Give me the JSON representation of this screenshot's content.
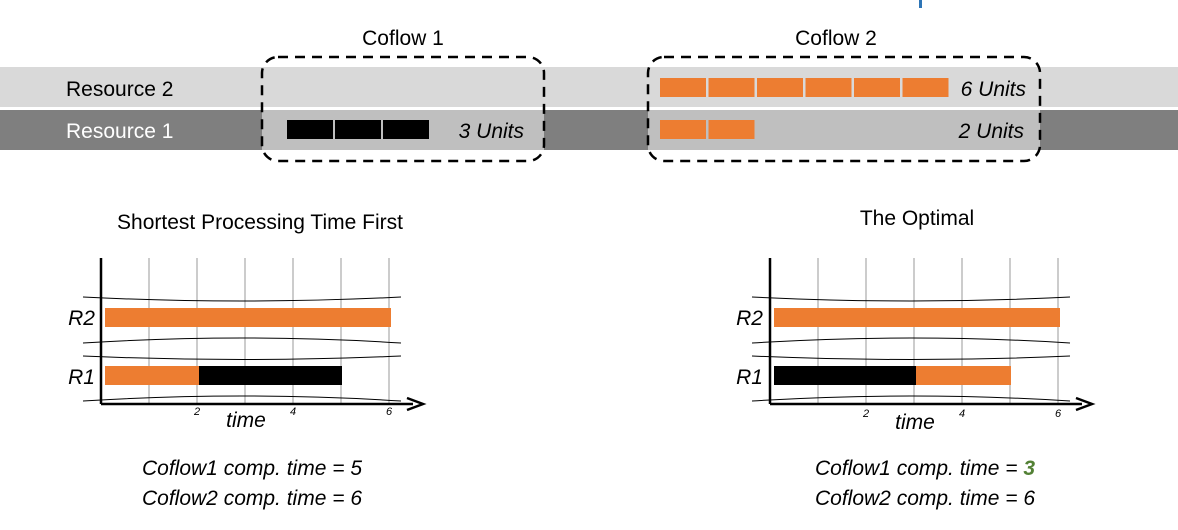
{
  "top": {
    "coflow1_title": "Coflow 1",
    "coflow2_title": "Coflow 2",
    "resource2_label": "Resource 2",
    "resource1_label": "Resource 1",
    "coflow1_r1_units": 3,
    "coflow1_r1_label": "3 Units",
    "coflow2_r2_units": 6,
    "coflow2_r2_label": "6 Units",
    "coflow2_r1_units": 2,
    "coflow2_r1_label": "2 Units"
  },
  "colors": {
    "orange": "#ED7D31",
    "black": "#000000",
    "resource2_band": "#D9D9D9",
    "resource1_band": "#7F7F7F",
    "coflow_box_fill": "#BFBFBF",
    "green": "#538135",
    "accent_blue": "#2E75B6"
  },
  "left_panel": {
    "title": "Shortest Processing Time First",
    "r2_label": "R2",
    "r1_label": "R1",
    "time_label": "time",
    "ticks": [
      "2",
      "4",
      "6"
    ],
    "r2_bars": [
      {
        "coflow": "Coflow 2",
        "start": 0,
        "end": 6,
        "color": "orange"
      }
    ],
    "r1_bars": [
      {
        "coflow": "Coflow 2",
        "start": 0,
        "end": 2,
        "color": "orange"
      },
      {
        "coflow": "Coflow 1",
        "start": 2,
        "end": 5,
        "color": "black"
      }
    ],
    "result1_prefix": "Coflow1 comp. time = ",
    "result1_value": "5",
    "result2_prefix": "Coflow2 comp. time = ",
    "result2_value": "6"
  },
  "right_panel": {
    "title": "The Optimal",
    "r2_label": "R2",
    "r1_label": "R1",
    "time_label": "time",
    "ticks": [
      "2",
      "4",
      "6"
    ],
    "r2_bars": [
      {
        "coflow": "Coflow 2",
        "start": 0,
        "end": 6,
        "color": "orange"
      }
    ],
    "r1_bars": [
      {
        "coflow": "Coflow 1",
        "start": 0,
        "end": 3,
        "color": "black"
      },
      {
        "coflow": "Coflow 2",
        "start": 3,
        "end": 5,
        "color": "orange"
      }
    ],
    "result1_prefix": "Coflow1 comp. time = ",
    "result1_value": "3",
    "result2_prefix": "Coflow2 comp. time = ",
    "result2_value": "6"
  }
}
